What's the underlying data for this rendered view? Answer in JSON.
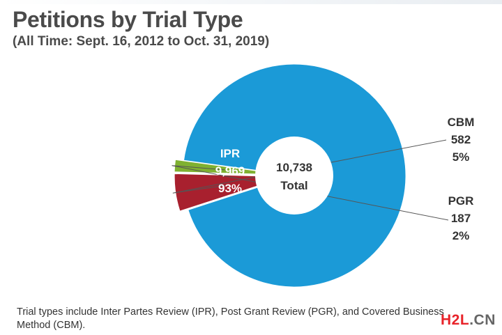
{
  "page": {
    "footnote": "Trial types include Inter Partes Review (IPR), Post Grant Review (PGR), and Covered Business Method (CBM).",
    "watermark": {
      "main": "H2L",
      "suffix": ".CN"
    }
  },
  "chart_data": {
    "type": "pie",
    "title": "Petitions by Trial Type",
    "subtitle": "(All Time: Sept. 16, 2012 to Oct. 31, 2019)",
    "center": {
      "value": "10,738",
      "label": "Total"
    },
    "slices": [
      {
        "name": "IPR",
        "value": 9969,
        "value_label": "9,969",
        "percent": 93,
        "percent_label": "93%",
        "color": "#1b9ad7"
      },
      {
        "name": "CBM",
        "value": 582,
        "value_label": "582",
        "percent": 5,
        "percent_label": "5%",
        "color": "#a8202e"
      },
      {
        "name": "PGR",
        "value": 187,
        "value_label": "187",
        "percent": 2,
        "percent_label": "2%",
        "color": "#7fb131"
      }
    ],
    "legend": "none"
  }
}
